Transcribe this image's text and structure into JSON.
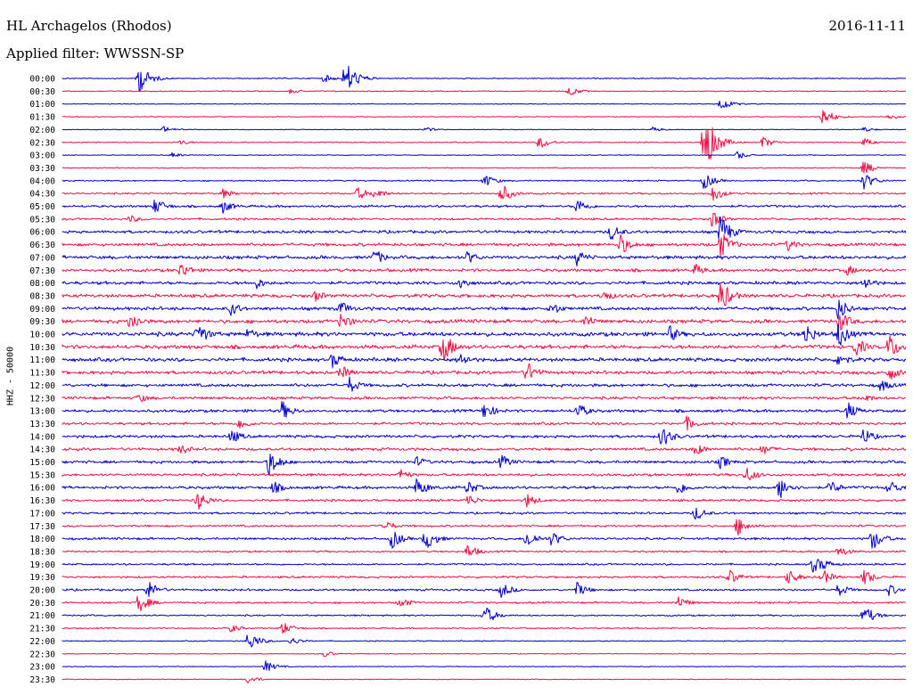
{
  "header": {
    "station": "HL Archagelos (Rhodos)",
    "date": "2016-11-11",
    "filter": "Applied filter: WWSSN-SP"
  },
  "chart_data": {
    "type": "line",
    "title": "HL Archagelos (Rhodos)",
    "ylabel": "HHZ - 50000",
    "row_labels": [
      "00:00",
      "00:30",
      "01:00",
      "01:30",
      "02:00",
      "02:30",
      "03:00",
      "03:30",
      "04:00",
      "04:30",
      "05:00",
      "05:30",
      "06:00",
      "06:30",
      "07:00",
      "07:30",
      "08:00",
      "08:30",
      "09:00",
      "09:30",
      "10:00",
      "10:30",
      "11:00",
      "11:30",
      "12:00",
      "12:30",
      "13:00",
      "13:30",
      "14:00",
      "14:30",
      "15:00",
      "15:30",
      "16:00",
      "16:30",
      "17:00",
      "17:30",
      "18:00",
      "18:30",
      "19:00",
      "19:30",
      "20:00",
      "20:30",
      "21:00",
      "21:30",
      "22:00",
      "22:30",
      "23:00",
      "23:30"
    ],
    "row_colors": [
      "#0000cc",
      "#ee1144"
    ],
    "trace_gain": [
      0.2,
      0.2,
      0.15,
      0.15,
      0.15,
      0.2,
      0.15,
      0.2,
      0.25,
      0.35,
      0.45,
      0.4,
      0.55,
      0.6,
      0.65,
      0.6,
      0.6,
      0.65,
      0.65,
      0.7,
      0.8,
      0.75,
      0.7,
      0.65,
      0.6,
      0.55,
      0.55,
      0.5,
      0.55,
      0.55,
      0.55,
      0.5,
      0.55,
      0.45,
      0.4,
      0.4,
      0.45,
      0.35,
      0.35,
      0.4,
      0.4,
      0.35,
      0.3,
      0.25,
      0.2,
      0.15,
      0.15,
      0.15
    ],
    "events": [
      {
        "row": 0,
        "x": 0.09,
        "amp": 18
      },
      {
        "row": 0,
        "x": 0.335,
        "amp": 22
      },
      {
        "row": 0,
        "x": 0.31,
        "amp": 5
      },
      {
        "row": 1,
        "x": 0.6,
        "amp": 6
      },
      {
        "row": 1,
        "x": 0.27,
        "amp": 3
      },
      {
        "row": 2,
        "x": 0.78,
        "amp": 8
      },
      {
        "row": 3,
        "x": 0.9,
        "amp": 12
      },
      {
        "row": 3,
        "x": 0.98,
        "amp": 4
      },
      {
        "row": 4,
        "x": 0.12,
        "amp": 4
      },
      {
        "row": 4,
        "x": 0.43,
        "amp": 3
      },
      {
        "row": 4,
        "x": 0.7,
        "amp": 3
      },
      {
        "row": 4,
        "x": 0.95,
        "amp": 3
      },
      {
        "row": 5,
        "x": 0.565,
        "amp": 8
      },
      {
        "row": 5,
        "x": 0.76,
        "amp": 40
      },
      {
        "row": 5,
        "x": 0.83,
        "amp": 7
      },
      {
        "row": 5,
        "x": 0.95,
        "amp": 5
      },
      {
        "row": 5,
        "x": 0.14,
        "amp": 3
      },
      {
        "row": 6,
        "x": 0.8,
        "amp": 5
      },
      {
        "row": 6,
        "x": 0.13,
        "amp": 3
      },
      {
        "row": 7,
        "x": 0.95,
        "amp": 8
      },
      {
        "row": 8,
        "x": 0.5,
        "amp": 8
      },
      {
        "row": 8,
        "x": 0.76,
        "amp": 10
      },
      {
        "row": 8,
        "x": 0.95,
        "amp": 10
      },
      {
        "row": 9,
        "x": 0.52,
        "amp": 12
      },
      {
        "row": 9,
        "x": 0.35,
        "amp": 8
      },
      {
        "row": 9,
        "x": 0.37,
        "amp": 7
      },
      {
        "row": 9,
        "x": 0.19,
        "amp": 6
      },
      {
        "row": 9,
        "x": 0.77,
        "amp": 10
      },
      {
        "row": 10,
        "x": 0.11,
        "amp": 10
      },
      {
        "row": 10,
        "x": 0.19,
        "amp": 8
      },
      {
        "row": 10,
        "x": 0.61,
        "amp": 10
      },
      {
        "row": 11,
        "x": 0.08,
        "amp": 5
      },
      {
        "row": 11,
        "x": 0.77,
        "amp": 10
      },
      {
        "row": 12,
        "x": 0.65,
        "amp": 10
      },
      {
        "row": 12,
        "x": 0.78,
        "amp": 20
      },
      {
        "row": 13,
        "x": 0.66,
        "amp": 14
      },
      {
        "row": 13,
        "x": 0.78,
        "amp": 16
      },
      {
        "row": 13,
        "x": 0.86,
        "amp": 8
      },
      {
        "row": 14,
        "x": 0.37,
        "amp": 10
      },
      {
        "row": 14,
        "x": 0.48,
        "amp": 8
      },
      {
        "row": 14,
        "x": 0.61,
        "amp": 10
      },
      {
        "row": 15,
        "x": 0.14,
        "amp": 10
      },
      {
        "row": 15,
        "x": 0.75,
        "amp": 8
      },
      {
        "row": 15,
        "x": 0.93,
        "amp": 7
      },
      {
        "row": 16,
        "x": 0.23,
        "amp": 7
      },
      {
        "row": 16,
        "x": 0.47,
        "amp": 9
      },
      {
        "row": 16,
        "x": 0.95,
        "amp": 9
      },
      {
        "row": 17,
        "x": 0.3,
        "amp": 7
      },
      {
        "row": 17,
        "x": 0.64,
        "amp": 8
      },
      {
        "row": 17,
        "x": 0.78,
        "amp": 20
      },
      {
        "row": 18,
        "x": 0.2,
        "amp": 9
      },
      {
        "row": 18,
        "x": 0.33,
        "amp": 9
      },
      {
        "row": 18,
        "x": 0.58,
        "amp": 8
      },
      {
        "row": 18,
        "x": 0.92,
        "amp": 14
      },
      {
        "row": 19,
        "x": 0.08,
        "amp": 12
      },
      {
        "row": 19,
        "x": 0.33,
        "amp": 11
      },
      {
        "row": 19,
        "x": 0.62,
        "amp": 9
      },
      {
        "row": 19,
        "x": 0.92,
        "amp": 14
      },
      {
        "row": 20,
        "x": 0.16,
        "amp": 14
      },
      {
        "row": 20,
        "x": 0.22,
        "amp": 8
      },
      {
        "row": 20,
        "x": 0.72,
        "amp": 10
      },
      {
        "row": 20,
        "x": 0.88,
        "amp": 14
      },
      {
        "row": 20,
        "x": 0.92,
        "amp": 16
      },
      {
        "row": 21,
        "x": 0.45,
        "amp": 20
      },
      {
        "row": 21,
        "x": 0.94,
        "amp": 12
      },
      {
        "row": 21,
        "x": 0.98,
        "amp": 16
      },
      {
        "row": 22,
        "x": 0.32,
        "amp": 10
      },
      {
        "row": 22,
        "x": 0.47,
        "amp": 10
      },
      {
        "row": 22,
        "x": 0.92,
        "amp": 10
      },
      {
        "row": 23,
        "x": 0.33,
        "amp": 9
      },
      {
        "row": 23,
        "x": 0.55,
        "amp": 14
      },
      {
        "row": 23,
        "x": 0.98,
        "amp": 10
      },
      {
        "row": 24,
        "x": 0.34,
        "amp": 10
      },
      {
        "row": 24,
        "x": 0.97,
        "amp": 8
      },
      {
        "row": 25,
        "x": 0.09,
        "amp": 6
      },
      {
        "row": 25,
        "x": 0.95,
        "amp": 6
      },
      {
        "row": 26,
        "x": 0.26,
        "amp": 12
      },
      {
        "row": 26,
        "x": 0.5,
        "amp": 10
      },
      {
        "row": 26,
        "x": 0.61,
        "amp": 10
      },
      {
        "row": 26,
        "x": 0.93,
        "amp": 11
      },
      {
        "row": 27,
        "x": 0.21,
        "amp": 7
      },
      {
        "row": 27,
        "x": 0.74,
        "amp": 9
      },
      {
        "row": 28,
        "x": 0.2,
        "amp": 9
      },
      {
        "row": 28,
        "x": 0.71,
        "amp": 14
      },
      {
        "row": 28,
        "x": 0.95,
        "amp": 10
      },
      {
        "row": 29,
        "x": 0.14,
        "amp": 7
      },
      {
        "row": 29,
        "x": 0.75,
        "amp": 8
      },
      {
        "row": 29,
        "x": 0.83,
        "amp": 7
      },
      {
        "row": 30,
        "x": 0.245,
        "amp": 16
      },
      {
        "row": 30,
        "x": 0.42,
        "amp": 7
      },
      {
        "row": 30,
        "x": 0.52,
        "amp": 9
      },
      {
        "row": 30,
        "x": 0.78,
        "amp": 8
      },
      {
        "row": 31,
        "x": 0.4,
        "amp": 7
      },
      {
        "row": 31,
        "x": 0.81,
        "amp": 10
      },
      {
        "row": 32,
        "x": 0.25,
        "amp": 8
      },
      {
        "row": 32,
        "x": 0.42,
        "amp": 12
      },
      {
        "row": 32,
        "x": 0.48,
        "amp": 9
      },
      {
        "row": 32,
        "x": 0.73,
        "amp": 9
      },
      {
        "row": 32,
        "x": 0.85,
        "amp": 14
      },
      {
        "row": 32,
        "x": 0.91,
        "amp": 9
      },
      {
        "row": 32,
        "x": 0.98,
        "amp": 10
      },
      {
        "row": 33,
        "x": 0.16,
        "amp": 12
      },
      {
        "row": 33,
        "x": 0.48,
        "amp": 8
      },
      {
        "row": 33,
        "x": 0.55,
        "amp": 9
      },
      {
        "row": 34,
        "x": 0.75,
        "amp": 9
      },
      {
        "row": 35,
        "x": 0.38,
        "amp": 8
      },
      {
        "row": 35,
        "x": 0.8,
        "amp": 12
      },
      {
        "row": 36,
        "x": 0.39,
        "amp": 12
      },
      {
        "row": 36,
        "x": 0.43,
        "amp": 14
      },
      {
        "row": 36,
        "x": 0.55,
        "amp": 12
      },
      {
        "row": 36,
        "x": 0.58,
        "amp": 9
      },
      {
        "row": 36,
        "x": 0.96,
        "amp": 14
      },
      {
        "row": 37,
        "x": 0.48,
        "amp": 9
      },
      {
        "row": 37,
        "x": 0.92,
        "amp": 7
      },
      {
        "row": 38,
        "x": 0.89,
        "amp": 10
      },
      {
        "row": 38,
        "x": 0.9,
        "amp": 8
      },
      {
        "row": 39,
        "x": 0.79,
        "amp": 10
      },
      {
        "row": 39,
        "x": 0.86,
        "amp": 10
      },
      {
        "row": 39,
        "x": 0.9,
        "amp": 10
      },
      {
        "row": 39,
        "x": 0.95,
        "amp": 10
      },
      {
        "row": 40,
        "x": 0.1,
        "amp": 12
      },
      {
        "row": 40,
        "x": 0.52,
        "amp": 9
      },
      {
        "row": 40,
        "x": 0.61,
        "amp": 9
      },
      {
        "row": 40,
        "x": 0.92,
        "amp": 8
      },
      {
        "row": 40,
        "x": 0.98,
        "amp": 7
      },
      {
        "row": 41,
        "x": 0.09,
        "amp": 12
      },
      {
        "row": 41,
        "x": 0.4,
        "amp": 7
      },
      {
        "row": 41,
        "x": 0.73,
        "amp": 8
      },
      {
        "row": 42,
        "x": 0.5,
        "amp": 12
      },
      {
        "row": 42,
        "x": 0.95,
        "amp": 12
      },
      {
        "row": 43,
        "x": 0.26,
        "amp": 8
      },
      {
        "row": 43,
        "x": 0.2,
        "amp": 5
      },
      {
        "row": 44,
        "x": 0.22,
        "amp": 12
      },
      {
        "row": 44,
        "x": 0.27,
        "amp": 5
      },
      {
        "row": 45,
        "x": 0.31,
        "amp": 4
      },
      {
        "row": 46,
        "x": 0.24,
        "amp": 7
      },
      {
        "row": 47,
        "x": 0.22,
        "amp": 5
      }
    ]
  }
}
